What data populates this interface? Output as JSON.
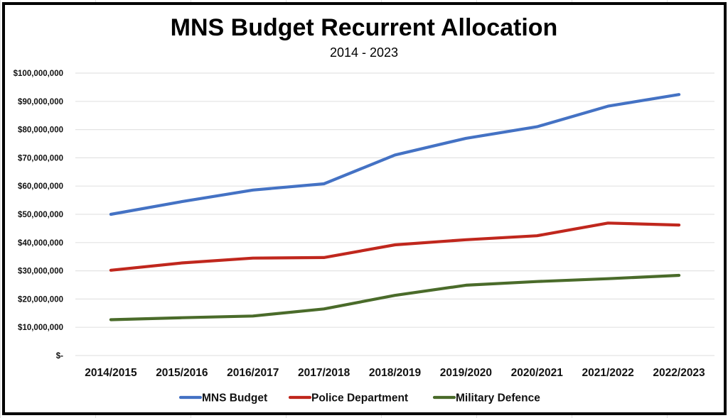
{
  "chart_data": {
    "type": "line",
    "title": "MNS Budget Recurrent Allocation",
    "subtitle": "2014 - 2023",
    "xlabel": "",
    "ylabel": "",
    "categories": [
      "2014/2015",
      "2015/2016",
      "2016/2017",
      "2017/2018",
      "2018/2019",
      "2019/2020",
      "2020/2021",
      "2021/2022",
      "2022/2023"
    ],
    "ylim": [
      0,
      100000000
    ],
    "yticks": [
      0,
      10000000,
      20000000,
      30000000,
      40000000,
      50000000,
      60000000,
      70000000,
      80000000,
      90000000,
      100000000
    ],
    "ytick_labels": [
      "$-",
      "$10,000,000",
      "$20,000,000",
      "$30,000,000",
      "$40,000,000",
      "$50,000,000",
      "$60,000,000",
      "$70,000,000",
      "$80,000,000",
      "$90,000,000",
      "$100,000,000"
    ],
    "grid": true,
    "legend_position": "bottom",
    "series": [
      {
        "name": "MNS Budget",
        "color": "#4472C4",
        "values": [
          50000000,
          54500000,
          58600000,
          60800000,
          71000000,
          76900000,
          81000000,
          88300000,
          92400000
        ]
      },
      {
        "name": "Police Department",
        "color": "#C0271D",
        "values": [
          30200000,
          32800000,
          34500000,
          34700000,
          39200000,
          41000000,
          42400000,
          46900000,
          46200000
        ]
      },
      {
        "name": "Military Defence",
        "color": "#4A6B2A",
        "values": [
          12700000,
          13400000,
          14000000,
          16500000,
          21300000,
          24900000,
          26200000,
          27200000,
          28400000
        ]
      }
    ]
  }
}
